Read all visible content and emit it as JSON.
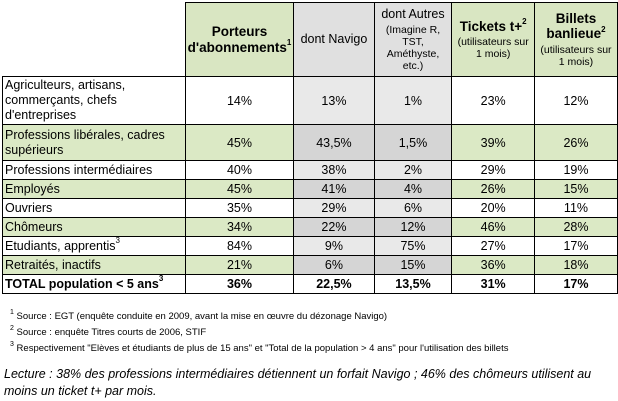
{
  "headers": [
    {
      "title": "Porteurs d'abonnements",
      "sup": "1",
      "subtitle": ""
    },
    {
      "title": "dont Navigo",
      "sup": "",
      "subtitle": ""
    },
    {
      "title": "dont Autres",
      "sup": "",
      "subtitle": "(Imagine R, TST, Améthyste, etc.)"
    },
    {
      "title": "Tickets t+",
      "sup": "2",
      "subtitle": "(utilisateurs sur 1 mois)"
    },
    {
      "title": "Billets banlieue",
      "sup": "2",
      "subtitle": "(utilisateurs sur 1 mois)"
    }
  ],
  "rows": [
    {
      "label": "Agriculteurs, artisans, commerçants, chefs d'entreprises",
      "sup": "",
      "values": [
        "14%",
        "13%",
        "1%",
        "23%",
        "12%"
      ]
    },
    {
      "label": "Professions libérales, cadres supérieurs",
      "sup": "",
      "values": [
        "45%",
        "43,5%",
        "1,5%",
        "39%",
        "26%"
      ]
    },
    {
      "label": "Professions intermédiaires",
      "sup": "",
      "values": [
        "40%",
        "38%",
        "2%",
        "29%",
        "19%"
      ]
    },
    {
      "label": "Employés",
      "sup": "",
      "values": [
        "45%",
        "41%",
        "4%",
        "26%",
        "15%"
      ]
    },
    {
      "label": "Ouvriers",
      "sup": "",
      "values": [
        "35%",
        "29%",
        "6%",
        "20%",
        "11%"
      ]
    },
    {
      "label": "Chômeurs",
      "sup": "",
      "values": [
        "34%",
        "22%",
        "12%",
        "46%",
        "28%"
      ]
    },
    {
      "label": "Etudiants, apprentis",
      "sup": "3",
      "values": [
        "84%",
        "9%",
        "75%",
        "27%",
        "17%"
      ]
    },
    {
      "label": "Retraités, inactifs",
      "sup": "",
      "values": [
        "21%",
        "6%",
        "15%",
        "36%",
        "18%"
      ]
    }
  ],
  "total": {
    "label": "TOTAL population < 5 ans",
    "sup": "3",
    "values": [
      "36%",
      "22,5%",
      "13,5%",
      "31%",
      "17%"
    ]
  },
  "notes": [
    {
      "num": "1",
      "text": "Source : EGT (enquête conduite en 2009, avant la mise en œuvre du dézonage Navigo)"
    },
    {
      "num": "2",
      "text": "Source : enquête Titres courts de 2006, STIF"
    },
    {
      "num": "3",
      "text": "Respectivement \"Elèves et étudiants de plus de 15 ans\" et \"Total de la population > 4 ans\" pour l'utilisation des billets"
    }
  ],
  "lecture": "Lecture : 38% des professions intermédiaires détiennent un forfait Navigo ; 46% des chômeurs utilisent au moins un ticket t+ par mois.",
  "colors": {
    "green": "#dbe9c5",
    "gray": "#d5d5d5",
    "light_gray": "#e9e9e9"
  }
}
